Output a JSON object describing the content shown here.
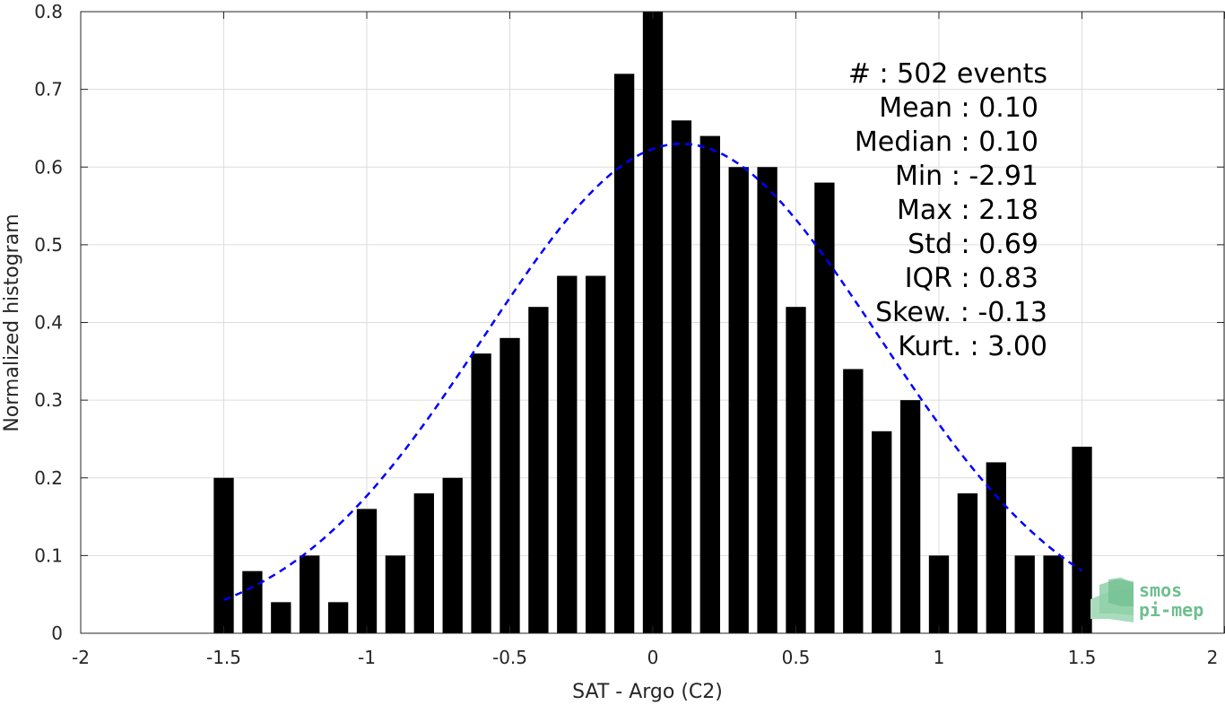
{
  "chart_data": {
    "type": "bar",
    "xlabel": "SAT - Argo (C2)",
    "ylabel": "Normalized histogram",
    "xlim": [
      -2,
      2
    ],
    "ylim": [
      0,
      0.8
    ],
    "xticks": [
      -2,
      -1.5,
      -1,
      -0.5,
      0,
      0.5,
      1,
      1.5,
      2
    ],
    "xtick_labels": [
      "-2",
      "-1.5",
      "-1",
      "-0.5",
      "0",
      "0.5",
      "1",
      "1.5",
      "2"
    ],
    "yticks": [
      0,
      0.1,
      0.2,
      0.3,
      0.4,
      0.5,
      0.6,
      0.7,
      0.8
    ],
    "ytick_labels": [
      "0",
      "0.1",
      "0.2",
      "0.3",
      "0.4",
      "0.5",
      "0.6",
      "0.7",
      "0.8"
    ],
    "grid": true,
    "bar_color": "#000000",
    "bar_width": 0.07,
    "bins": [
      -1.5,
      -1.4,
      -1.3,
      -1.2,
      -1.1,
      -1.0,
      -0.9,
      -0.8,
      -0.7,
      -0.6,
      -0.5,
      -0.4,
      -0.3,
      -0.2,
      -0.1,
      0.0,
      0.1,
      0.2,
      0.3,
      0.4,
      0.5,
      0.6,
      0.7,
      0.8,
      0.9,
      1.0,
      1.1,
      1.2,
      1.3,
      1.4,
      1.5
    ],
    "values": [
      0.2,
      0.08,
      0.04,
      0.1,
      0.04,
      0.16,
      0.1,
      0.18,
      0.2,
      0.36,
      0.38,
      0.42,
      0.46,
      0.46,
      0.72,
      0.8,
      0.66,
      0.64,
      0.6,
      0.6,
      0.42,
      0.58,
      0.34,
      0.26,
      0.3,
      0.1,
      0.18,
      0.22,
      0.1,
      0.1,
      0.24
    ],
    "fit_curve": {
      "type": "gaussian",
      "mean": 0.1,
      "std": 0.69,
      "peak": 0.63,
      "x_range": [
        -1.5,
        1.5
      ],
      "color": "#0000ff",
      "style": "dashed"
    },
    "stats": [
      "#  : 502 events",
      "Mean : 0.10",
      "Median : 0.10",
      "Min : -2.91",
      "Max : 2.18",
      "Std : 0.69",
      "IQR : 0.83",
      "Skew. : -0.13",
      "Kurt. : 3.00"
    ],
    "logo": {
      "line1": "smos",
      "line2": "pi-mep"
    }
  }
}
